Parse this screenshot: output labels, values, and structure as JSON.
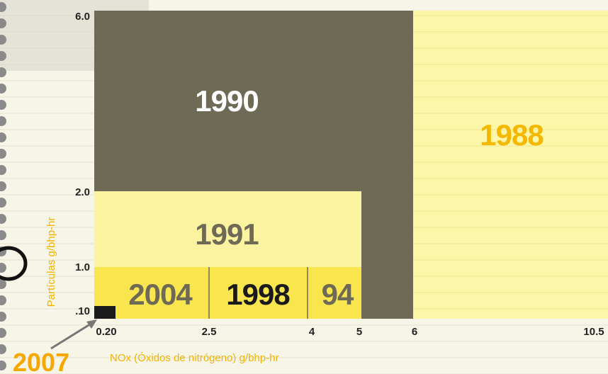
{
  "axes": {
    "y_title": "Partículas g/bhp-hr",
    "x_title": "NOx (Óxidos de nitrógeno) g/bhp-hr",
    "y_ticks": [
      "6.0",
      "2.0",
      "1.0",
      ".10"
    ],
    "x_ticks": [
      "0.20",
      "2.5",
      "4",
      "5",
      "6",
      "10.5"
    ]
  },
  "regions": [
    {
      "label": "1988"
    },
    {
      "label": "1990"
    },
    {
      "label": "1991"
    },
    {
      "label": "2004"
    },
    {
      "label": "1998"
    },
    {
      "label": "94"
    }
  ],
  "callout": "2007"
}
